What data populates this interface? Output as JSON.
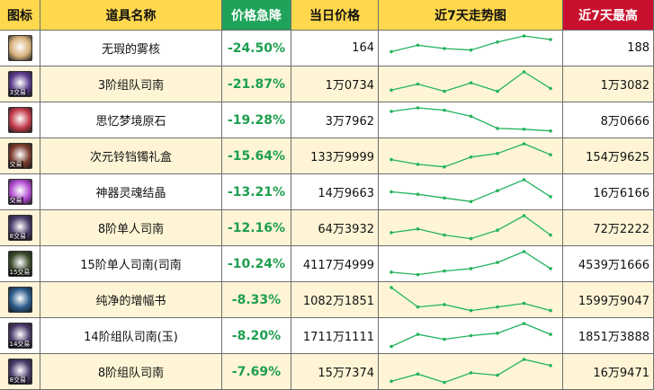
{
  "columns": {
    "icon": "图标",
    "name": "道具名称",
    "drop": "价格急降",
    "today": "当日价格",
    "trend": "近7天走势图",
    "high": "近7天最高"
  },
  "rows": [
    {
      "name": "无瑕的雾核",
      "drop": "-24.50%",
      "today": "164",
      "high": "188",
      "badge": "",
      "icon_color": "#d7b07a",
      "trend": [
        0.35,
        0.62,
        0.48,
        0.42,
        0.75,
        1.0,
        0.85
      ]
    },
    {
      "name": "3阶组队司南",
      "drop": "-21.87%",
      "today": "1万0734",
      "high": "1万3082",
      "badge": "3交易",
      "icon_color": "#5a3a8a",
      "trend": [
        0.25,
        0.5,
        0.2,
        0.55,
        0.2,
        1.0,
        0.32
      ]
    },
    {
      "name": "思忆梦境原石",
      "drop": "-19.28%",
      "today": "3万7962",
      "high": "8万0666",
      "badge": "",
      "icon_color": "#c23b4a",
      "trend": [
        0.85,
        1.0,
        0.9,
        0.65,
        0.15,
        0.12,
        0.05
      ]
    },
    {
      "name": "次元铃铛镯礼盒",
      "drop": "-15.64%",
      "today": "133万9999",
      "high": "154万9625",
      "badge": "交易",
      "icon_color": "#7a3a2a",
      "trend": [
        0.35,
        0.15,
        0.05,
        0.45,
        0.6,
        1.0,
        0.55
      ]
    },
    {
      "name": "神器灵魂结晶",
      "drop": "-13.21%",
      "today": "14万9663",
      "high": "16万6166",
      "badge": "交易",
      "icon_color": "#b04ad0",
      "trend": [
        0.5,
        0.4,
        0.25,
        0.1,
        0.55,
        1.0,
        0.3
      ]
    },
    {
      "name": "8阶单人司南",
      "drop": "-12.16%",
      "today": "64万3932",
      "high": "72万2222",
      "badge": "8交易",
      "icon_color": "#4a3a6a",
      "trend": [
        0.3,
        0.45,
        0.2,
        0.05,
        0.4,
        1.0,
        0.2
      ]
    },
    {
      "name": "15阶单人司南(司南",
      "drop": "-10.24%",
      "today": "4117万4999",
      "high": "4539万1666",
      "badge": "15交易",
      "icon_color": "#3a4a2a",
      "trend": [
        0.15,
        0.05,
        0.2,
        0.3,
        0.55,
        1.0,
        0.3
      ]
    },
    {
      "name": "纯净的增幅书",
      "drop": "-8.33%",
      "today": "1082万1851",
      "high": "1599万9047",
      "badge": "",
      "icon_color": "#2a5a8a",
      "trend": [
        1.0,
        0.2,
        0.3,
        0.05,
        0.2,
        0.35,
        0.05
      ]
    },
    {
      "name": "14阶组队司南(玉)",
      "drop": "-8.20%",
      "today": "1711万1111",
      "high": "1851万3888",
      "badge": "14交易",
      "icon_color": "#4a3a6a",
      "trend": [
        0.05,
        0.55,
        0.35,
        0.5,
        0.6,
        1.0,
        0.55
      ]
    },
    {
      "name": "8阶组队司南",
      "drop": "-7.69%",
      "today": "15万7374",
      "high": "16万9471",
      "badge": "8交易",
      "icon_color": "#4a3a6a",
      "trend": [
        0.1,
        0.4,
        0.05,
        0.45,
        0.35,
        1.0,
        0.75
      ]
    }
  ],
  "colors": {
    "header_yellow": "#ffd84d",
    "header_green": "#1fa35a",
    "header_red": "#c8102e",
    "row_alt": "#fff5d6",
    "drop_green": "#1e9e4f",
    "trend_line": "#22b35b"
  },
  "icons": [
    "item-icon"
  ]
}
